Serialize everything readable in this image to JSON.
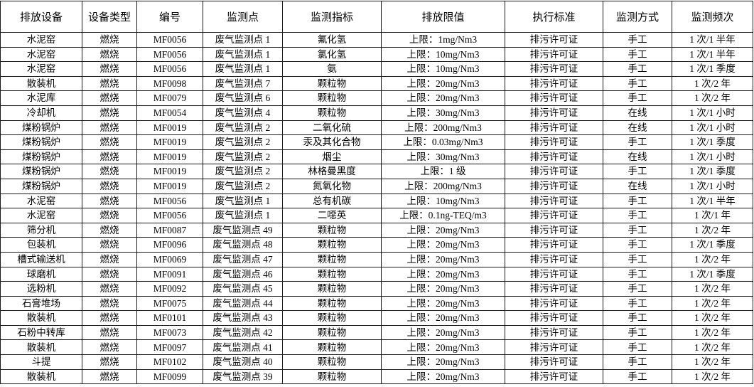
{
  "table": {
    "columns": [
      "排放设备",
      "设备类型",
      "编号",
      "监测点",
      "监测指标",
      "排放限值",
      "执行标准",
      "监测方式",
      "监测频次"
    ],
    "rows": [
      [
        "水泥窑",
        "燃烧",
        "MF0056",
        "废气监测点 1",
        "氟化氢",
        "上限：1mg/Nm3",
        "排污许可证",
        "手工",
        "1 次/1 半年"
      ],
      [
        "水泥窑",
        "燃烧",
        "MF0056",
        "废气监测点 1",
        "氯化氢",
        "上限：10mg/Nm3",
        "排污许可证",
        "手工",
        "1 次/1 半年"
      ],
      [
        "水泥窑",
        "燃烧",
        "MF0056",
        "废气监测点 1",
        "氨",
        "上限：10mg/Nm3",
        "排污许可证",
        "手工",
        "1 次/1 季度"
      ],
      [
        "散装机",
        "燃烧",
        "MF0098",
        "废气监测点 7",
        "颗粒物",
        "上限：20mg/Nm3",
        "排污许可证",
        "手工",
        "1 次/2 年"
      ],
      [
        "水泥库",
        "燃烧",
        "MF0079",
        "废气监测点 6",
        "颗粒物",
        "上限：20mg/Nm3",
        "排污许可证",
        "手工",
        "1 次/2 年"
      ],
      [
        "冷却机",
        "燃烧",
        "MF0054",
        "废气监测点 4",
        "颗粒物",
        "上限：30mg/Nm3",
        "排污许可证",
        "在线",
        "1 次/1 小时"
      ],
      [
        "煤粉锅炉",
        "燃烧",
        "MF0019",
        "废气监测点 2",
        "二氧化硫",
        "上限：200mg/Nm3",
        "排污许可证",
        "在线",
        "1 次/1 小时"
      ],
      [
        "煤粉锅炉",
        "燃烧",
        "MF0019",
        "废气监测点 2",
        "汞及其化合物",
        "上限：0.03mg/Nm3",
        "排污许可证",
        "手工",
        "1 次/1 季度"
      ],
      [
        "煤粉锅炉",
        "燃烧",
        "MF0019",
        "废气监测点 2",
        "烟尘",
        "上限：30mg/Nm3",
        "排污许可证",
        "在线",
        "1 次/1 小时"
      ],
      [
        "煤粉锅炉",
        "燃烧",
        "MF0019",
        "废气监测点 2",
        "林格曼黑度",
        "上限：1 级",
        "排污许可证",
        "手工",
        "1 次/1 季度"
      ],
      [
        "煤粉锅炉",
        "燃烧",
        "MF0019",
        "废气监测点 2",
        "氮氧化物",
        "上限：200mg/Nm3",
        "排污许可证",
        "在线",
        "1 次/1 小时"
      ],
      [
        "水泥窑",
        "燃烧",
        "MF0056",
        "废气监测点 1",
        "总有机碳",
        "上限：10mg/Nm3",
        "排污许可证",
        "手工",
        "1 次/1 半年"
      ],
      [
        "水泥窑",
        "燃烧",
        "MF0056",
        "废气监测点 1",
        "二噁英",
        "上限：0.1ng-TEQ/m3",
        "排污许可证",
        "手工",
        "1 次/1 年"
      ],
      [
        "筛分机",
        "燃烧",
        "MF0087",
        "废气监测点 49",
        "颗粒物",
        "上限：20mg/Nm3",
        "排污许可证",
        "手工",
        "1 次/2 年"
      ],
      [
        "包装机",
        "燃烧",
        "MF0096",
        "废气监测点 48",
        "颗粒物",
        "上限：20mg/Nm3",
        "排污许可证",
        "手工",
        "1 次/1 季度"
      ],
      [
        "槽式输送机",
        "燃烧",
        "MF0069",
        "废气监测点 47",
        "颗粒物",
        "上限：20mg/Nm3",
        "排污许可证",
        "手工",
        "1 次/2 年"
      ],
      [
        "球磨机",
        "燃烧",
        "MF0091",
        "废气监测点 46",
        "颗粒物",
        "上限：20mg/Nm3",
        "排污许可证",
        "手工",
        "1 次/1 季度"
      ],
      [
        "选粉机",
        "燃烧",
        "MF0092",
        "废气监测点 45",
        "颗粒物",
        "上限：20mg/Nm3",
        "排污许可证",
        "手工",
        "1 次/2 年"
      ],
      [
        "石膏堆场",
        "燃烧",
        "MF0075",
        "废气监测点 44",
        "颗粒物",
        "上限：20mg/Nm3",
        "排污许可证",
        "手工",
        "1 次/2 年"
      ],
      [
        "散装机",
        "燃烧",
        "MF0101",
        "废气监测点 43",
        "颗粒物",
        "上限：20mg/Nm3",
        "排污许可证",
        "手工",
        "1 次/2 年"
      ],
      [
        "石粉中转库",
        "燃烧",
        "MF0073",
        "废气监测点 42",
        "颗粒物",
        "上限：20mg/Nm3",
        "排污许可证",
        "手工",
        "1 次/2 年"
      ],
      [
        "散装机",
        "燃烧",
        "MF0097",
        "废气监测点 41",
        "颗粒物",
        "上限：20mg/Nm3",
        "排污许可证",
        "手工",
        "1 次/2 年"
      ],
      [
        "斗提",
        "燃烧",
        "MF0102",
        "废气监测点 40",
        "颗粒物",
        "上限：20mg/Nm3",
        "排污许可证",
        "手工",
        "1 次/2 年"
      ],
      [
        "散装机",
        "燃烧",
        "MF0099",
        "废气监测点 39",
        "颗粒物",
        "上限：20mg/Nm3",
        "排污许可证",
        "手工",
        "1 次/2 年"
      ]
    ]
  }
}
